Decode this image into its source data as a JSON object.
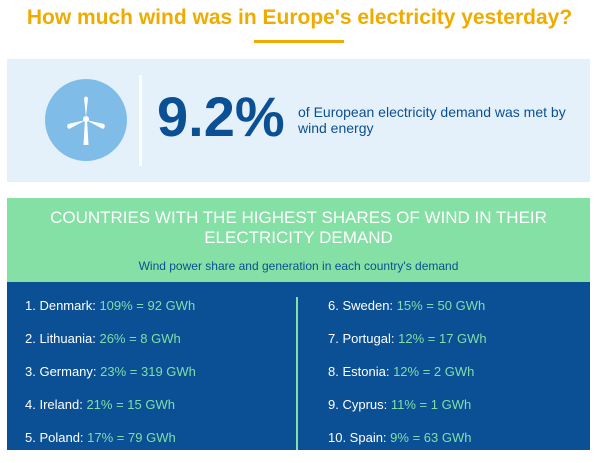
{
  "header": {
    "title": "How much wind was in Europe's electricity yesterday?"
  },
  "summary": {
    "icon": "wind-turbine-icon",
    "percent": "9.2%",
    "description": "of European electricity demand was met by wind energy"
  },
  "ranking": {
    "title": "COUNTRIES WITH THE HIGHEST SHARES OF WIND IN THEIR ELECTRICITY DEMAND",
    "subtitle": "Wind power share and generation in each country's demand",
    "left": [
      {
        "country": "1. Denmark:",
        "value": "109% = 92 GWh"
      },
      {
        "country": "2. Lithuania:",
        "value": "26% = 8 GWh"
      },
      {
        "country": "3. Germany:",
        "value": "23% = 319 GWh"
      },
      {
        "country": "4. Ireland:",
        "value": "21% = 15 GWh"
      },
      {
        "country": "5. Poland:",
        "value": "17% = 79 GWh"
      }
    ],
    "right": [
      {
        "country": "6. Sweden:",
        "value": "15% = 50 GWh"
      },
      {
        "country": "7. Portugal:",
        "value": "12% = 17 GWh"
      },
      {
        "country": "8. Estonia:",
        "value": "12% = 2 GWh"
      },
      {
        "country": "9. Cyprus:",
        "value": "11% = 1 GWh"
      },
      {
        "country": "10. Spain:",
        "value": "9% = 63 GWh"
      }
    ]
  },
  "colors": {
    "accent": "#f0ab00",
    "navy": "#0b4f94",
    "green": "#84e0a4",
    "light_blue": "#e4f1fa",
    "icon_blue": "#7fbde8"
  }
}
